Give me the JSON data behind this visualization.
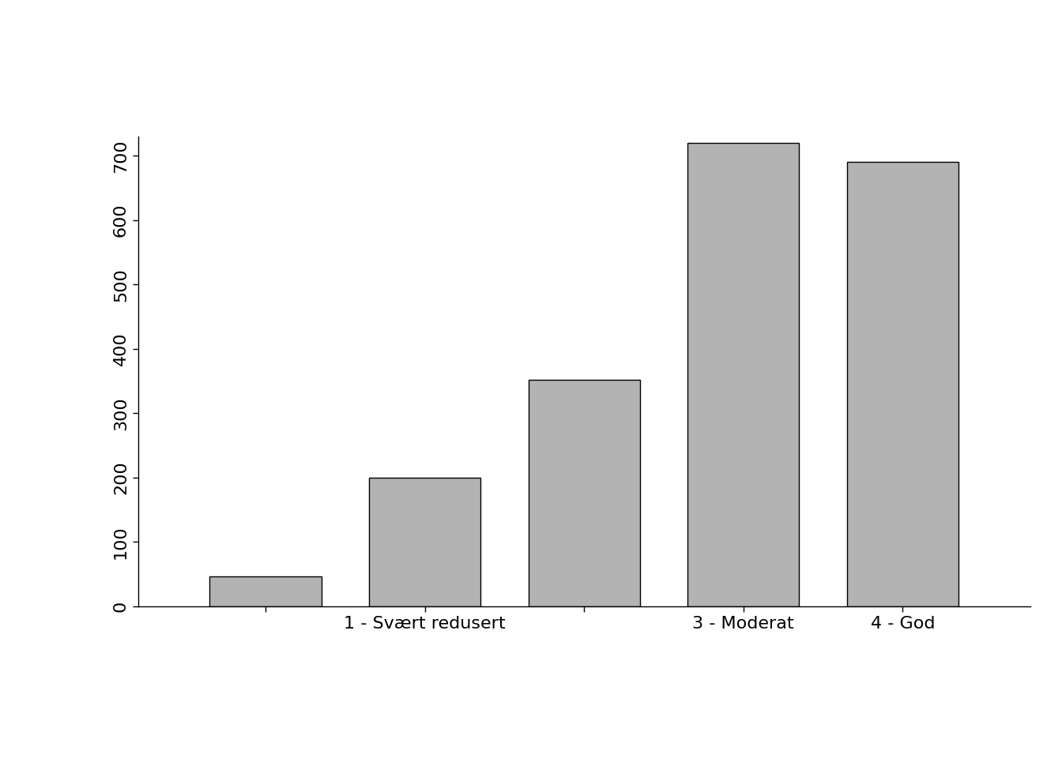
{
  "categories": [
    "",
    "1 - Svært redusert",
    "",
    "3 - Moderat",
    "4 - God"
  ],
  "values": [
    47,
    200,
    352,
    720,
    690
  ],
  "bar_color": "#b3b3b3",
  "bar_edgecolor": "#000000",
  "ylim": [
    0,
    730
  ],
  "yticks": [
    0,
    100,
    200,
    300,
    400,
    500,
    600,
    700
  ],
  "background_color": "#ffffff",
  "bar_width": 0.7,
  "tick_fontsize": 16,
  "label_fontsize": 16
}
